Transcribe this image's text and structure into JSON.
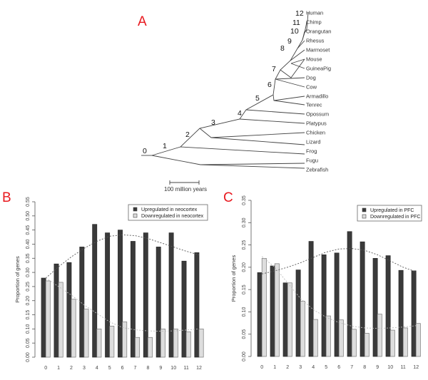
{
  "panel_labels": {
    "a": "A",
    "b": "B",
    "c": "C"
  },
  "tree": {
    "leaves": [
      "Human",
      "Chimp",
      "Orangutan",
      "Rhesus",
      "Marmoset",
      "Mouse",
      "GuineaPig",
      "Dog",
      "Cow",
      "Armadillo",
      "Tenrec",
      "Opossum",
      "Platypus",
      "Chicken",
      "Lizard",
      "Frog",
      "Fugu",
      "Zebrafish"
    ],
    "nodes": [
      "0",
      "1",
      "2",
      "3",
      "4",
      "5",
      "6",
      "7",
      "8",
      "9",
      "10",
      "11",
      "12"
    ],
    "scale_label": "100 million years"
  },
  "chart_data": [
    {
      "type": "bar",
      "panel": "B",
      "title": "",
      "xlabel": "",
      "ylabel": "Proportion of genes",
      "ylim": [
        0,
        0.55
      ],
      "yticks": [
        "0.00",
        "0.05",
        "0.10",
        "0.15",
        "0.20",
        "0.25",
        "0.30",
        "0.35",
        "0.40",
        "0.45",
        "0.50",
        "0.55"
      ],
      "categories": [
        "0",
        "1",
        "2",
        "3",
        "4",
        "5",
        "6",
        "7",
        "8",
        "9",
        "10",
        "11",
        "12"
      ],
      "legend_position": "top-right",
      "series": [
        {
          "name": "Upregulated in neocortex",
          "color": "#3a3a3a",
          "values": [
            0.28,
            0.33,
            0.335,
            0.39,
            0.47,
            0.44,
            0.45,
            0.41,
            0.44,
            0.39,
            0.44,
            0.34,
            0.37
          ],
          "trend": [
            0.28,
            0.32,
            0.355,
            0.385,
            0.41,
            0.428,
            0.433,
            0.43,
            0.42,
            0.405,
            0.39,
            0.375,
            0.362
          ]
        },
        {
          "name": "Downregulated in neocortex",
          "color": "#dddddd",
          "values": [
            0.27,
            0.265,
            0.205,
            0.17,
            0.1,
            0.11,
            0.125,
            0.07,
            0.07,
            0.1,
            0.1,
            0.09,
            0.1
          ],
          "trend": [
            0.28,
            0.25,
            0.22,
            0.185,
            0.155,
            0.125,
            0.105,
            0.097,
            0.093,
            0.092,
            0.093,
            0.096,
            0.1
          ]
        }
      ]
    },
    {
      "type": "bar",
      "panel": "C",
      "title": "",
      "xlabel": "",
      "ylabel": "Proportion of genes",
      "ylim": [
        0,
        0.35
      ],
      "yticks": [
        "0.00",
        "0.05",
        "0.10",
        "0.15",
        "0.20",
        "0.25",
        "0.30",
        "0.35"
      ],
      "categories": [
        "0",
        "1",
        "2",
        "3",
        "4",
        "5",
        "6",
        "7",
        "8",
        "9",
        "10",
        "11",
        "12"
      ],
      "legend_position": "top-right",
      "series": [
        {
          "name": "Upregulated in PFC",
          "color": "#3a3a3a",
          "values": [
            0.188,
            0.203,
            0.165,
            0.194,
            0.258,
            0.228,
            0.232,
            0.28,
            0.257,
            0.22,
            0.226,
            0.193,
            0.192
          ],
          "trend": [
            0.185,
            0.192,
            0.2,
            0.21,
            0.222,
            0.234,
            0.241,
            0.242,
            0.238,
            0.228,
            0.214,
            0.2,
            0.19
          ]
        },
        {
          "name": "Downregulated in PFC",
          "color": "#dddddd",
          "values": [
            0.22,
            0.208,
            0.165,
            0.124,
            0.083,
            0.091,
            0.082,
            0.061,
            0.052,
            0.095,
            0.059,
            0.064,
            0.074
          ],
          "trend": [
            0.224,
            0.2,
            0.165,
            0.13,
            0.105,
            0.088,
            0.076,
            0.068,
            0.064,
            0.063,
            0.064,
            0.066,
            0.069
          ]
        }
      ]
    }
  ]
}
